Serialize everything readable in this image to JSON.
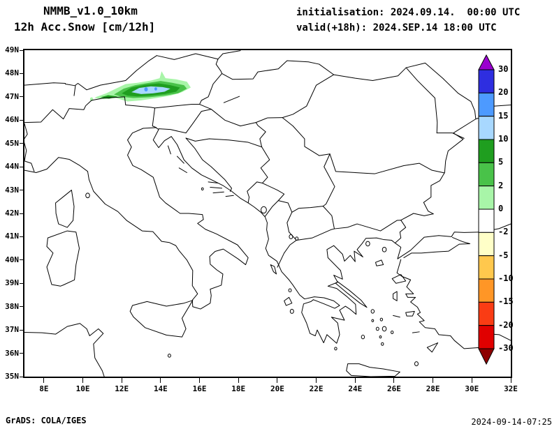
{
  "header": {
    "model": "NMMB_v1.0_10km",
    "field": "12h Acc.Snow [cm/12h]",
    "init": "initialisation: 2024.09.14.  00:00 UTC",
    "valid": "valid(+18h): 2024.SEP.14 18:00 UTC"
  },
  "footer": {
    "left": "GrADS: COLA/IGES",
    "right": "2024-09-14-07:25"
  },
  "chart_data": {
    "type": "heatmap",
    "title": "NMMB_v1.0_10km 12h Acc.Snow [cm/12h]",
    "projection": "lat-lon map of central and southeastern Europe",
    "x_axis": {
      "range": [
        7,
        32
      ],
      "tick_labels": [
        "8E",
        "10E",
        "12E",
        "14E",
        "16E",
        "18E",
        "20E",
        "22E",
        "24E",
        "26E",
        "28E",
        "30E",
        "32E"
      ]
    },
    "y_axis": {
      "range": [
        35,
        49
      ],
      "tick_labels": [
        "49N",
        "48N",
        "47N",
        "46N",
        "45N",
        "44N",
        "43N",
        "42N",
        "41N",
        "40N",
        "39N",
        "38N",
        "37N",
        "36N",
        "35N"
      ]
    },
    "colorbar": {
      "units": "cm/12h",
      "levels": [
        "30",
        "20",
        "15",
        "10",
        "5",
        "2",
        "0",
        "-2",
        "-5",
        "-10",
        "-15",
        "-20",
        "-30"
      ],
      "colors": [
        "#9a00d0",
        "#2e2ee0",
        "#4d9aff",
        "#a8d8ff",
        "#1f9e1f",
        "#49c249",
        "#a8f5a8",
        "#ffffff",
        "#ffffc8",
        "#ffc84d",
        "#ff9626",
        "#fa3c14",
        "#e00000",
        "#8e0000"
      ]
    },
    "features": [
      {
        "name": "snow-accumulation-area",
        "description": "12h accumulated snow band over the Alps / Austria, approx 10.6E-15.6E and 46.8N-48.1N, nested contours 2/5/10 cm with light-blue core 10-15 cm and small 15-20 cm specks"
      }
    ],
    "grid": "off",
    "legend_position": "right-vertical-colorbar"
  }
}
